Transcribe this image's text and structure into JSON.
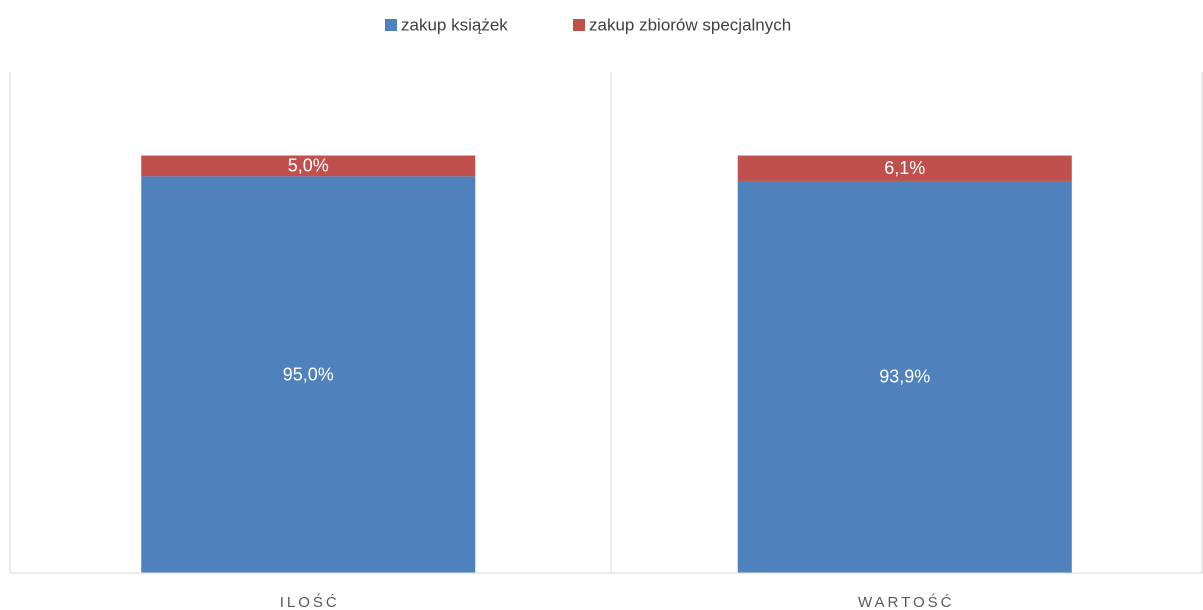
{
  "chart_data": {
    "type": "stacked_bar",
    "categories": [
      "ILOŚĆ",
      "WARTOŚĆ"
    ],
    "series": [
      {
        "name": "zakup książek",
        "color": "#4f81bd",
        "values": [
          95.0,
          93.9
        ],
        "value_labels": [
          "95,0%",
          "93,9%"
        ]
      },
      {
        "name": "zakup zbiorów specjalnych",
        "color": "#c0504d",
        "values": [
          5.0,
          6.1
        ],
        "value_labels": [
          "5,0%",
          "6,1%"
        ]
      }
    ],
    "ylim": [
      0,
      120
    ],
    "legend": "top"
  }
}
